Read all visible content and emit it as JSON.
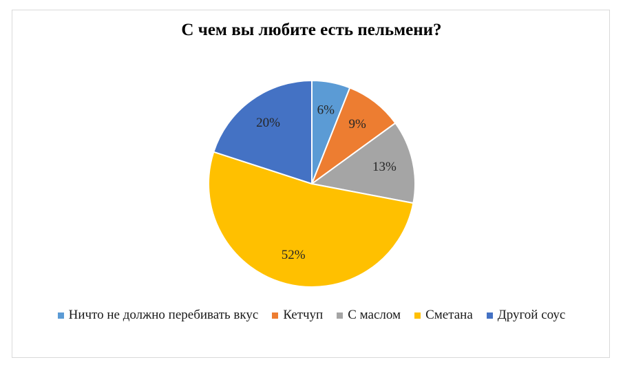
{
  "chart_data": {
    "type": "pie",
    "title": "С чем вы любите есть пельмени?",
    "categories": [
      "Ничто не должно перебивать вкус",
      "Кетчуп",
      "С маслом",
      "Сметана",
      "Другой соус"
    ],
    "values": [
      6,
      9,
      13,
      52,
      20
    ],
    "data_labels": [
      "6%",
      "9%",
      "13%",
      "52%",
      "20%"
    ],
    "colors": [
      "#5b9bd5",
      "#ed7d31",
      "#a5a5a5",
      "#ffc000",
      "#4472c4"
    ],
    "start_angle_deg": 0,
    "direction": "clockwise",
    "legend_position": "bottom"
  }
}
